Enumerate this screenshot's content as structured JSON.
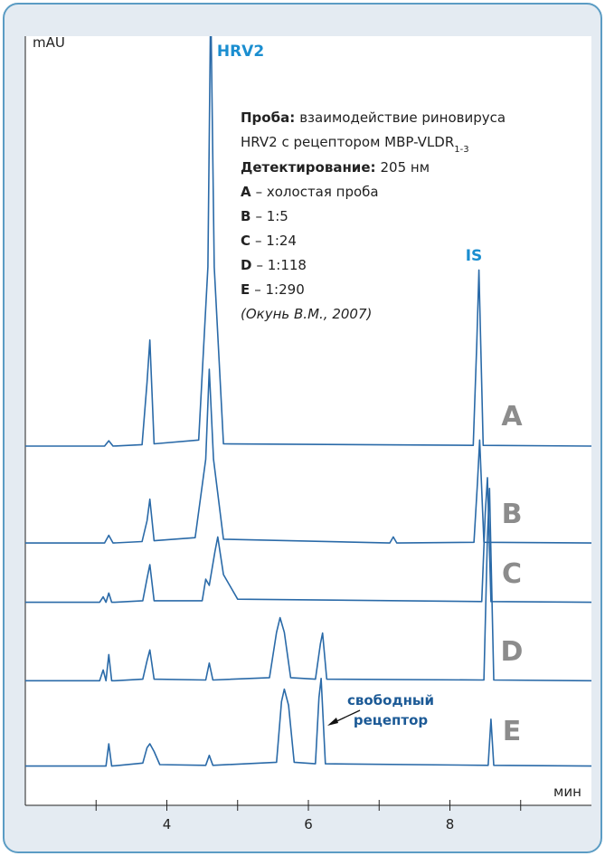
{
  "chart_data": {
    "type": "line",
    "y_label": "mAU",
    "x_label": "мин",
    "xlim": [
      2.0,
      10.0
    ],
    "xticks": [
      4,
      6,
      8
    ],
    "minor_xticks": [
      3,
      5,
      7,
      9
    ],
    "ylim": [
      0,
      100
    ],
    "color": "#2a6aa8",
    "series": [
      {
        "name": "A",
        "description": "– холостая проба",
        "x": [
          2.0,
          3.12,
          3.18,
          3.24,
          3.65,
          3.72,
          3.76,
          3.82,
          4.45,
          4.58,
          4.62,
          4.67,
          4.8,
          8.33,
          8.38,
          8.41,
          8.47,
          10.0
        ],
        "values": [
          46.7,
          46.7,
          47.4,
          46.7,
          46.9,
          55,
          60.5,
          47,
          47.5,
          70,
          105,
          70,
          47,
          46.8,
          60,
          69.6,
          46.8,
          46.7
        ]
      },
      {
        "name": "B",
        "description": "– 1:5",
        "x": [
          2.0,
          3.12,
          3.18,
          3.24,
          3.65,
          3.72,
          3.76,
          3.82,
          4.4,
          4.55,
          4.6,
          4.66,
          4.8,
          7.15,
          7.2,
          7.25,
          8.34,
          8.39,
          8.42,
          8.48,
          10.0
        ],
        "values": [
          34.1,
          34.1,
          35.1,
          34.1,
          34.3,
          37,
          39.8,
          34.4,
          34.8,
          45,
          56.7,
          45,
          34.6,
          34.1,
          34.9,
          34.1,
          34.2,
          42,
          47.5,
          34.2,
          34.1
        ]
      },
      {
        "name": "C",
        "description": "– 1:24",
        "x": [
          2.0,
          3.05,
          3.1,
          3.14,
          3.18,
          3.22,
          3.26,
          3.66,
          3.72,
          3.76,
          3.82,
          4.5,
          4.55,
          4.6,
          4.68,
          4.72,
          4.8,
          5.0,
          8.45,
          8.5,
          8.53,
          8.58,
          10.0
        ],
        "values": [
          26.4,
          26.4,
          27.1,
          26.4,
          27.6,
          26.4,
          26.4,
          26.6,
          29.5,
          31.3,
          26.6,
          26.6,
          29.4,
          28.6,
          33,
          34.9,
          30,
          26.8,
          26.5,
          38,
          42.6,
          26.5,
          26.4
        ]
      },
      {
        "name": "D",
        "description": "– 1:118",
        "x": [
          2.0,
          3.05,
          3.1,
          3.14,
          3.18,
          3.22,
          3.26,
          3.66,
          3.72,
          3.76,
          3.82,
          4.55,
          4.6,
          4.65,
          5.45,
          5.55,
          5.6,
          5.66,
          5.75,
          6.1,
          6.17,
          6.2,
          6.26,
          8.48,
          8.53,
          8.56,
          8.62,
          10.0
        ],
        "values": [
          16.2,
          16.2,
          17.6,
          16.2,
          19.6,
          16.2,
          16.2,
          16.4,
          18.8,
          20.2,
          16.4,
          16.3,
          18.5,
          16.3,
          16.6,
          22.5,
          24.4,
          22.5,
          16.6,
          16.4,
          21,
          22.4,
          16.4,
          16.3,
          35,
          41.2,
          16.3,
          16.2
        ]
      },
      {
        "name": "E",
        "description": "– 1:290",
        "x": [
          2.0,
          3.14,
          3.18,
          3.22,
          3.66,
          3.72,
          3.76,
          3.82,
          3.9,
          4.55,
          4.6,
          4.65,
          5.55,
          5.62,
          5.66,
          5.72,
          5.8,
          6.1,
          6.15,
          6.18,
          6.24,
          8.54,
          8.58,
          8.62,
          10.0
        ],
        "values": [
          5.1,
          5.1,
          8.0,
          5.1,
          5.5,
          7.5,
          8.0,
          7,
          5.3,
          5.2,
          6.5,
          5.2,
          5.6,
          13.5,
          15.1,
          13,
          5.6,
          5.4,
          14,
          16.5,
          5.4,
          5.2,
          11.2,
          5.2,
          5.1
        ]
      }
    ],
    "annotation": {
      "sample_label": "Проба:",
      "sample_text_1": "взаимодействие риновируса",
      "sample_text_2": "HRV2 с рецептором MBP-VLDR",
      "sample_subscript": "1-3",
      "detection_label": "Детектирование:",
      "detection_text": "205 нм",
      "source": "(Окунь В.М., 2007)"
    },
    "peak_labels": {
      "hrv2": "HRV2",
      "is": "IS",
      "free_receptor_1": "свободный",
      "free_receptor_2": "рецептор"
    }
  }
}
